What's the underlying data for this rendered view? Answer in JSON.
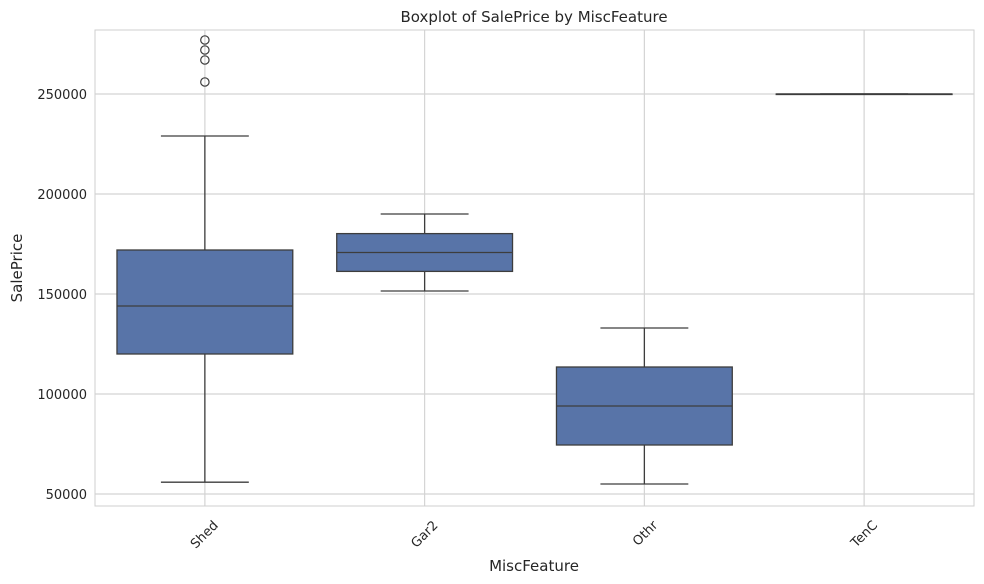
{
  "chart_data": {
    "type": "boxplot",
    "title": "Boxplot of SalePrice by MiscFeature",
    "xlabel": "MiscFeature",
    "ylabel": "SalePrice",
    "categories": [
      "Shed",
      "Gar2",
      "Othr",
      "TenC"
    ],
    "yticks": [
      50000,
      100000,
      150000,
      200000,
      250000
    ],
    "ylim": [
      44000,
      282000
    ],
    "grid": true,
    "box_color": "#5874a8",
    "line_color": "#3d3d3d",
    "grid_color": "#d4d4d4",
    "boxes": [
      {
        "category": "Shed",
        "whisker_low": 55900,
        "q1": 120000,
        "median": 144000,
        "q3": 172000,
        "whisker_high": 229000,
        "outliers": [
          256000,
          267000,
          272000,
          277000
        ]
      },
      {
        "category": "Gar2",
        "whisker_low": 151500,
        "q1": 161300,
        "median": 170750,
        "q3": 180200,
        "whisker_high": 190000,
        "outliers": []
      },
      {
        "category": "Othr",
        "whisker_low": 55000,
        "q1": 74500,
        "median": 94000,
        "q3": 113500,
        "whisker_high": 133000,
        "outliers": []
      },
      {
        "category": "TenC",
        "whisker_low": 250000,
        "q1": 250000,
        "median": 250000,
        "q3": 250000,
        "whisker_high": 250000,
        "outliers": []
      }
    ]
  }
}
